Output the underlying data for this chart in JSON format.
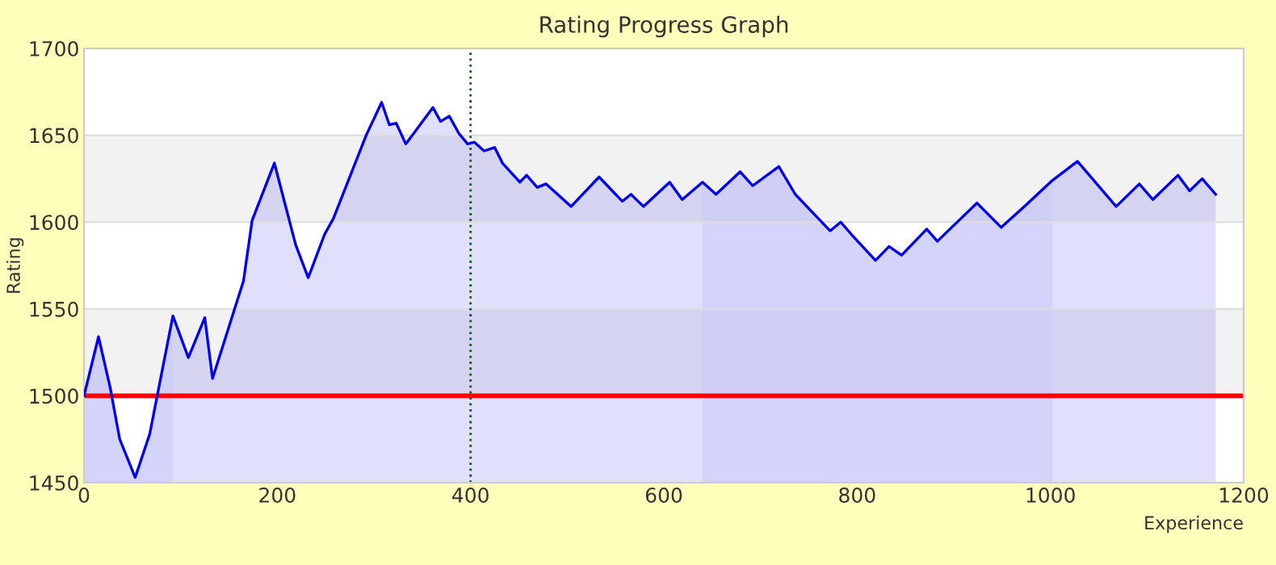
{
  "chart_data": {
    "type": "area",
    "title": "Rating Progress Graph",
    "xlabel": "Experience",
    "ylabel": "Rating",
    "xlim": [
      0,
      1200
    ],
    "xticks": [
      0,
      200,
      400,
      600,
      800,
      1000,
      1200
    ],
    "ylim": [
      1450,
      1700
    ],
    "yticks": [
      1450,
      1500,
      1550,
      1600,
      1650,
      1700
    ],
    "grid": "y",
    "legend": false,
    "series": [
      {
        "color": "#0000ee",
        "x": [
          0,
          15,
          27,
          37,
          53,
          68,
          92,
          108,
          125,
          133,
          165,
          174,
          197,
          219,
          232,
          249,
          258,
          292,
          308,
          316,
          323,
          333,
          361,
          369,
          378,
          388,
          397,
          404,
          414,
          425,
          433,
          451,
          458,
          469,
          478,
          504,
          533,
          557,
          566,
          579,
          606,
          619,
          640,
          654,
          679,
          692,
          719,
          736,
          772,
          783,
          794,
          819,
          833,
          846,
          872,
          883,
          924,
          949,
          975,
          1002,
          1028,
          1068,
          1092,
          1106,
          1132,
          1144,
          1157,
          1171
        ],
        "values": [
          1500,
          1534,
          1505,
          1475,
          1453,
          1478,
          1546,
          1522,
          1545,
          1510,
          1566,
          1601,
          1634,
          1587,
          1568,
          1593,
          1602,
          1650,
          1669,
          1656,
          1657,
          1645,
          1666,
          1658,
          1661,
          1651,
          1645,
          1646,
          1641,
          1643,
          1634,
          1623,
          1627,
          1620,
          1622,
          1609,
          1626,
          1612,
          1616,
          1609,
          1623,
          1613,
          1623,
          1616,
          1629,
          1621,
          1632,
          1616,
          1595,
          1600,
          1593,
          1578,
          1586,
          1581,
          1596,
          1589,
          1611,
          1597,
          1610,
          1624,
          1635,
          1609,
          1622,
          1613,
          1627,
          1618,
          1625,
          1616
        ]
      }
    ],
    "bands": [
      {
        "axis": "x",
        "from": 0,
        "to": 92,
        "color": "#ccccfa"
      },
      {
        "axis": "x",
        "from": 640,
        "to": 1002,
        "color": "#ccccfa"
      }
    ],
    "ref_lines": [
      {
        "axis": "y",
        "value": 1500,
        "color": "#ff0000",
        "line_style": "solid"
      },
      {
        "axis": "x",
        "value": 400,
        "color": "#006600",
        "line_style": "dotted"
      }
    ]
  }
}
